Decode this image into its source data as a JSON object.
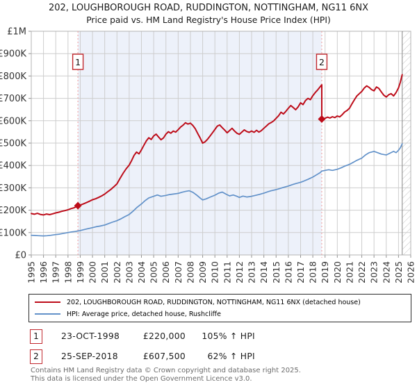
{
  "chart_data": {
    "type": "line",
    "title": "202, LOUGHBOROUGH ROAD, RUDDINGTON, NOTTINGHAM, NG11 6NX",
    "subtitle": "Price paid vs. HM Land Registry's House Price Index (HPI)",
    "x_range": [
      1995,
      2026
    ],
    "y_range": [
      0,
      1000000
    ],
    "x_ticks": [
      1995,
      1996,
      1997,
      1998,
      1999,
      2000,
      2001,
      2002,
      2003,
      2004,
      2005,
      2006,
      2007,
      2008,
      2009,
      2010,
      2011,
      2012,
      2013,
      2014,
      2015,
      2016,
      2017,
      2018,
      2019,
      2020,
      2021,
      2022,
      2023,
      2024,
      2025,
      2026
    ],
    "y_ticks": [
      [
        0,
        "£0"
      ],
      [
        100000,
        "£100K"
      ],
      [
        200000,
        "£200K"
      ],
      [
        300000,
        "£300K"
      ],
      [
        400000,
        "£400K"
      ],
      [
        500000,
        "£500K"
      ],
      [
        600000,
        "£600K"
      ],
      [
        700000,
        "£700K"
      ],
      [
        800000,
        "£800K"
      ],
      [
        900000,
        "£900K"
      ],
      [
        1000000,
        "£1M"
      ]
    ],
    "grid": true,
    "legend_position": "bottom",
    "shaded_span": [
      1998.81,
      2018.73
    ],
    "hatch_span": [
      2025.3,
      2026
    ],
    "colors": {
      "shade": "#edf1fa",
      "grid": "#cdcdcd",
      "frame": "#b3b3b3",
      "tick": "#8f8f8f",
      "sale_line": "#f09a9a",
      "hatch": "#c4c4c4",
      "hatch_edge": "#999999",
      "marker_box_border": "#c1272d",
      "axis_text": "#333333"
    },
    "series": [
      {
        "name": "202, LOUGHBOROUGH ROAD, RUDDINGTON, NOTTINGHAM, NG11 6NX (detached house)",
        "color": "#bd0c19",
        "width": 2,
        "points": [
          [
            1995.0,
            185000
          ],
          [
            1995.25,
            182000
          ],
          [
            1995.5,
            186000
          ],
          [
            1995.75,
            181000
          ],
          [
            1996.0,
            179000
          ],
          [
            1996.25,
            183000
          ],
          [
            1996.5,
            180000
          ],
          [
            1996.75,
            184000
          ],
          [
            1997.0,
            188000
          ],
          [
            1997.25,
            191000
          ],
          [
            1997.5,
            195000
          ],
          [
            1997.75,
            198000
          ],
          [
            1998.0,
            202000
          ],
          [
            1998.25,
            207000
          ],
          [
            1998.5,
            211000
          ],
          [
            1998.81,
            220000
          ],
          [
            1999.0,
            223000
          ],
          [
            1999.25,
            228000
          ],
          [
            1999.5,
            234000
          ],
          [
            1999.75,
            240000
          ],
          [
            2000.0,
            247000
          ],
          [
            2000.25,
            251000
          ],
          [
            2000.5,
            257000
          ],
          [
            2000.75,
            264000
          ],
          [
            2001.0,
            272000
          ],
          [
            2001.25,
            283000
          ],
          [
            2001.5,
            293000
          ],
          [
            2001.75,
            305000
          ],
          [
            2002.0,
            318000
          ],
          [
            2002.25,
            342000
          ],
          [
            2002.5,
            365000
          ],
          [
            2002.75,
            385000
          ],
          [
            2003.0,
            402000
          ],
          [
            2003.2,
            422000
          ],
          [
            2003.4,
            445000
          ],
          [
            2003.6,
            460000
          ],
          [
            2003.8,
            452000
          ],
          [
            2004.0,
            470000
          ],
          [
            2004.2,
            490000
          ],
          [
            2004.4,
            510000
          ],
          [
            2004.6,
            524000
          ],
          [
            2004.8,
            516000
          ],
          [
            2005.0,
            532000
          ],
          [
            2005.2,
            540000
          ],
          [
            2005.4,
            527000
          ],
          [
            2005.6,
            515000
          ],
          [
            2005.8,
            523000
          ],
          [
            2006.0,
            540000
          ],
          [
            2006.2,
            551000
          ],
          [
            2006.4,
            544000
          ],
          [
            2006.6,
            554000
          ],
          [
            2006.8,
            549000
          ],
          [
            2007.0,
            560000
          ],
          [
            2007.2,
            572000
          ],
          [
            2007.4,
            580000
          ],
          [
            2007.6,
            591000
          ],
          [
            2007.8,
            585000
          ],
          [
            2008.0,
            589000
          ],
          [
            2008.2,
            579000
          ],
          [
            2008.4,
            564000
          ],
          [
            2008.6,
            543000
          ],
          [
            2008.8,
            522000
          ],
          [
            2009.0,
            500000
          ],
          [
            2009.2,
            506000
          ],
          [
            2009.4,
            517000
          ],
          [
            2009.6,
            531000
          ],
          [
            2009.8,
            546000
          ],
          [
            2010.0,
            561000
          ],
          [
            2010.2,
            576000
          ],
          [
            2010.4,
            581000
          ],
          [
            2010.6,
            569000
          ],
          [
            2010.8,
            558000
          ],
          [
            2011.0,
            546000
          ],
          [
            2011.2,
            556000
          ],
          [
            2011.4,
            566000
          ],
          [
            2011.6,
            554000
          ],
          [
            2011.8,
            544000
          ],
          [
            2012.0,
            539000
          ],
          [
            2012.2,
            549000
          ],
          [
            2012.4,
            559000
          ],
          [
            2012.6,
            552000
          ],
          [
            2012.8,
            548000
          ],
          [
            2013.0,
            554000
          ],
          [
            2013.2,
            548000
          ],
          [
            2013.4,
            557000
          ],
          [
            2013.6,
            549000
          ],
          [
            2013.8,
            556000
          ],
          [
            2014.0,
            566000
          ],
          [
            2014.2,
            576000
          ],
          [
            2014.4,
            586000
          ],
          [
            2014.6,
            592000
          ],
          [
            2014.8,
            599000
          ],
          [
            2015.0,
            611000
          ],
          [
            2015.2,
            622000
          ],
          [
            2015.4,
            638000
          ],
          [
            2015.6,
            630000
          ],
          [
            2015.8,
            642000
          ],
          [
            2016.0,
            656000
          ],
          [
            2016.2,
            668000
          ],
          [
            2016.4,
            659000
          ],
          [
            2016.6,
            649000
          ],
          [
            2016.8,
            662000
          ],
          [
            2017.0,
            680000
          ],
          [
            2017.2,
            672000
          ],
          [
            2017.4,
            690000
          ],
          [
            2017.6,
            700000
          ],
          [
            2017.8,
            694000
          ],
          [
            2018.0,
            712000
          ],
          [
            2018.2,
            726000
          ],
          [
            2018.4,
            738000
          ],
          [
            2018.6,
            752000
          ],
          [
            2018.73,
            761000
          ],
          [
            2018.73,
            607500
          ],
          [
            2019.0,
            611000
          ],
          [
            2019.2,
            616000
          ],
          [
            2019.4,
            612000
          ],
          [
            2019.6,
            618000
          ],
          [
            2019.8,
            614000
          ],
          [
            2020.0,
            621000
          ],
          [
            2020.2,
            617000
          ],
          [
            2020.4,
            627000
          ],
          [
            2020.6,
            639000
          ],
          [
            2020.8,
            646000
          ],
          [
            2021.0,
            656000
          ],
          [
            2021.2,
            676000
          ],
          [
            2021.4,
            694000
          ],
          [
            2021.6,
            711000
          ],
          [
            2021.8,
            721000
          ],
          [
            2022.0,
            731000
          ],
          [
            2022.2,
            746000
          ],
          [
            2022.4,
            756000
          ],
          [
            2022.6,
            749000
          ],
          [
            2022.8,
            739000
          ],
          [
            2023.0,
            734000
          ],
          [
            2023.2,
            751000
          ],
          [
            2023.4,
            744000
          ],
          [
            2023.6,
            729000
          ],
          [
            2023.8,
            714000
          ],
          [
            2024.0,
            706000
          ],
          [
            2024.2,
            716000
          ],
          [
            2024.4,
            721000
          ],
          [
            2024.6,
            711000
          ],
          [
            2024.8,
            726000
          ],
          [
            2025.0,
            747000
          ],
          [
            2025.15,
            772000
          ],
          [
            2025.3,
            806000
          ]
        ]
      },
      {
        "name": "HPI: Average price, detached house, Rushcliffe",
        "color": "#6191c9",
        "width": 1.7,
        "points": [
          [
            1995.0,
            88000
          ],
          [
            1995.3,
            87000
          ],
          [
            1995.6,
            86000
          ],
          [
            1996.0,
            85000
          ],
          [
            1996.3,
            86000
          ],
          [
            1996.6,
            88000
          ],
          [
            1997.0,
            91000
          ],
          [
            1997.3,
            93000
          ],
          [
            1997.6,
            96000
          ],
          [
            1998.0,
            100000
          ],
          [
            1998.3,
            103000
          ],
          [
            1998.6,
            105000
          ],
          [
            1998.81,
            107000
          ],
          [
            1999.0,
            109000
          ],
          [
            1999.3,
            113000
          ],
          [
            1999.6,
            117000
          ],
          [
            2000.0,
            122000
          ],
          [
            2000.3,
            126000
          ],
          [
            2000.6,
            129000
          ],
          [
            2001.0,
            134000
          ],
          [
            2001.3,
            140000
          ],
          [
            2001.6,
            146000
          ],
          [
            2002.0,
            153000
          ],
          [
            2002.3,
            161000
          ],
          [
            2002.6,
            170000
          ],
          [
            2003.0,
            181000
          ],
          [
            2003.3,
            195000
          ],
          [
            2003.6,
            211000
          ],
          [
            2004.0,
            228000
          ],
          [
            2004.3,
            243000
          ],
          [
            2004.6,
            255000
          ],
          [
            2005.0,
            262000
          ],
          [
            2005.3,
            268000
          ],
          [
            2005.6,
            262000
          ],
          [
            2006.0,
            266000
          ],
          [
            2006.3,
            270000
          ],
          [
            2006.6,
            272000
          ],
          [
            2007.0,
            275000
          ],
          [
            2007.3,
            280000
          ],
          [
            2007.6,
            284000
          ],
          [
            2007.9,
            287000
          ],
          [
            2008.2,
            280000
          ],
          [
            2008.5,
            268000
          ],
          [
            2008.8,
            254000
          ],
          [
            2009.0,
            246000
          ],
          [
            2009.3,
            251000
          ],
          [
            2009.6,
            258000
          ],
          [
            2010.0,
            267000
          ],
          [
            2010.3,
            276000
          ],
          [
            2010.6,
            281000
          ],
          [
            2010.9,
            272000
          ],
          [
            2011.2,
            264000
          ],
          [
            2011.5,
            268000
          ],
          [
            2011.8,
            262000
          ],
          [
            2012.0,
            257000
          ],
          [
            2012.3,
            263000
          ],
          [
            2012.6,
            259000
          ],
          [
            2013.0,
            262000
          ],
          [
            2013.3,
            266000
          ],
          [
            2013.6,
            270000
          ],
          [
            2014.0,
            276000
          ],
          [
            2014.3,
            282000
          ],
          [
            2014.6,
            287000
          ],
          [
            2015.0,
            292000
          ],
          [
            2015.3,
            297000
          ],
          [
            2015.6,
            302000
          ],
          [
            2016.0,
            308000
          ],
          [
            2016.3,
            314000
          ],
          [
            2016.6,
            319000
          ],
          [
            2017.0,
            325000
          ],
          [
            2017.3,
            331000
          ],
          [
            2017.6,
            338000
          ],
          [
            2018.0,
            348000
          ],
          [
            2018.3,
            358000
          ],
          [
            2018.6,
            368000
          ],
          [
            2018.73,
            375000
          ],
          [
            2019.0,
            378000
          ],
          [
            2019.3,
            381000
          ],
          [
            2019.6,
            378000
          ],
          [
            2020.0,
            383000
          ],
          [
            2020.3,
            389000
          ],
          [
            2020.6,
            397000
          ],
          [
            2021.0,
            405000
          ],
          [
            2021.3,
            414000
          ],
          [
            2021.6,
            423000
          ],
          [
            2022.0,
            433000
          ],
          [
            2022.3,
            447000
          ],
          [
            2022.6,
            457000
          ],
          [
            2023.0,
            463000
          ],
          [
            2023.3,
            457000
          ],
          [
            2023.6,
            451000
          ],
          [
            2024.0,
            447000
          ],
          [
            2024.3,
            455000
          ],
          [
            2024.6,
            463000
          ],
          [
            2024.8,
            457000
          ],
          [
            2025.0,
            468000
          ],
          [
            2025.15,
            479000
          ],
          [
            2025.3,
            497000
          ]
        ]
      }
    ],
    "sale_markers": [
      {
        "label": "1",
        "x": 1998.81,
        "y": 220000
      },
      {
        "label": "2",
        "x": 2018.73,
        "y": 607500
      }
    ]
  },
  "annotations": [
    {
      "num": "1",
      "date": "23-OCT-1998",
      "price": "£220,000",
      "hpi": "105% ↑ HPI"
    },
    {
      "num": "2",
      "date": "25-SEP-2018",
      "price": "£607,500",
      "hpi": "62% ↑ HPI"
    }
  ],
  "footer": {
    "line1": "Contains HM Land Registry data © Crown copyright and database right 2025.",
    "line2": "This data is licensed under the Open Government Licence v3.0."
  }
}
